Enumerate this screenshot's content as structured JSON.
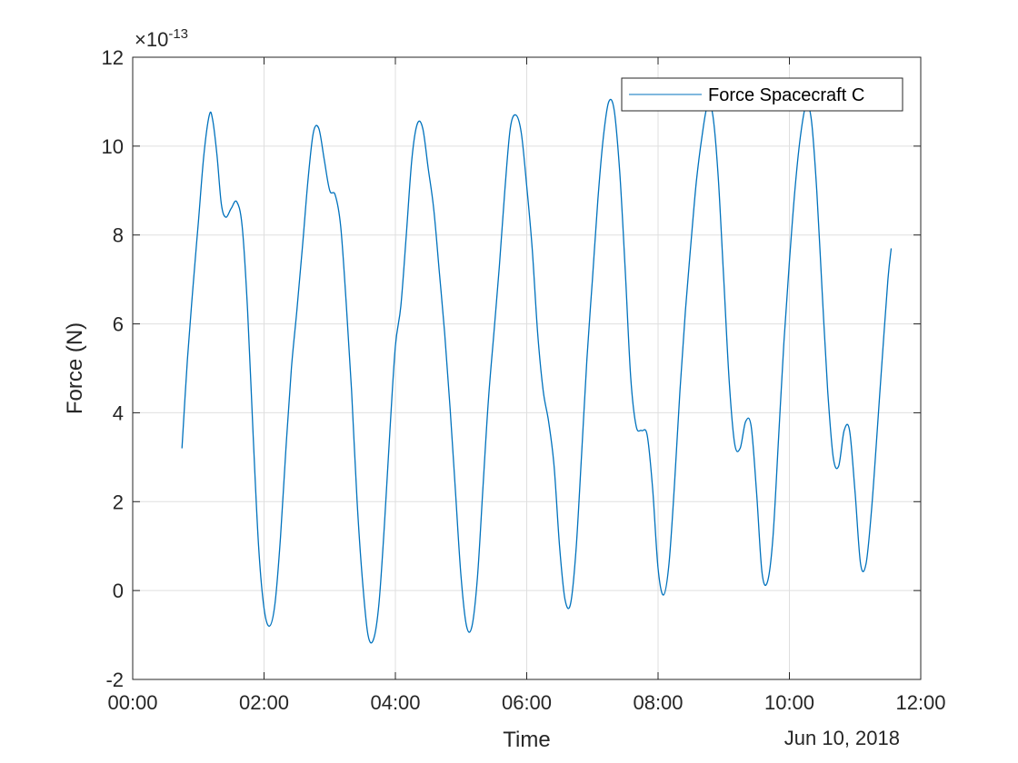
{
  "chart_data": {
    "type": "line",
    "xlabel": "Time",
    "ylabel": "Force (N)",
    "x_axis_type": "time",
    "x_tick_labels": [
      "00:00",
      "02:00",
      "04:00",
      "06:00",
      "08:00",
      "10:00",
      "12:00"
    ],
    "x_date_label": "Jun 10, 2018",
    "xlim": [
      "00:00",
      "12:00"
    ],
    "y_tick_labels": [
      "-2",
      "0",
      "2",
      "4",
      "6",
      "8",
      "10",
      "12"
    ],
    "ylim": [
      -2,
      12
    ],
    "y_exponent": {
      "base": "×10",
      "power": "-13"
    },
    "grid": true,
    "legend_position": "top-right",
    "series": [
      {
        "name": "Force Spacecraft C",
        "color": "#0072BD",
        "points": [
          [
            "00:45",
            3.2
          ],
          [
            "00:50",
            5.2
          ],
          [
            "00:55",
            6.8
          ],
          [
            "01:00",
            8.3
          ],
          [
            "01:05",
            9.8
          ],
          [
            "01:10",
            10.7
          ],
          [
            "01:13",
            10.6
          ],
          [
            "01:17",
            9.8
          ],
          [
            "01:21",
            8.7
          ],
          [
            "01:25",
            8.4
          ],
          [
            "01:30",
            8.6
          ],
          [
            "01:35",
            8.75
          ],
          [
            "01:40",
            8.2
          ],
          [
            "01:45",
            6.3
          ],
          [
            "01:50",
            3.5
          ],
          [
            "01:55",
            1.0
          ],
          [
            "02:00",
            -0.4
          ],
          [
            "02:05",
            -0.8
          ],
          [
            "02:10",
            -0.3
          ],
          [
            "02:15",
            1.2
          ],
          [
            "02:20",
            3.2
          ],
          [
            "02:25",
            5.0
          ],
          [
            "02:30",
            6.3
          ],
          [
            "02:35",
            7.7
          ],
          [
            "02:40",
            9.2
          ],
          [
            "02:45",
            10.3
          ],
          [
            "02:50",
            10.4
          ],
          [
            "02:55",
            9.7
          ],
          [
            "03:00",
            9.0
          ],
          [
            "03:05",
            8.9
          ],
          [
            "03:10",
            8.2
          ],
          [
            "03:15",
            6.5
          ],
          [
            "03:20",
            4.5
          ],
          [
            "03:25",
            2.0
          ],
          [
            "03:30",
            0.2
          ],
          [
            "03:35",
            -1.0
          ],
          [
            "03:40",
            -1.1
          ],
          [
            "03:45",
            -0.3
          ],
          [
            "03:50",
            1.5
          ],
          [
            "03:55",
            3.6
          ],
          [
            "04:00",
            5.5
          ],
          [
            "04:05",
            6.4
          ],
          [
            "04:10",
            8.0
          ],
          [
            "04:15",
            9.7
          ],
          [
            "04:20",
            10.5
          ],
          [
            "04:25",
            10.4
          ],
          [
            "04:30",
            9.5
          ],
          [
            "04:35",
            8.6
          ],
          [
            "04:40",
            7.2
          ],
          [
            "04:45",
            5.8
          ],
          [
            "04:50",
            4.1
          ],
          [
            "04:55",
            2.2
          ],
          [
            "05:00",
            0.3
          ],
          [
            "05:05",
            -0.8
          ],
          [
            "05:10",
            -0.8
          ],
          [
            "05:15",
            0.3
          ],
          [
            "05:20",
            2.3
          ],
          [
            "05:25",
            4.3
          ],
          [
            "05:30",
            5.8
          ],
          [
            "05:35",
            7.3
          ],
          [
            "05:40",
            9.0
          ],
          [
            "05:45",
            10.4
          ],
          [
            "05:50",
            10.7
          ],
          [
            "05:55",
            10.3
          ],
          [
            "06:00",
            9.1
          ],
          [
            "06:05",
            7.7
          ],
          [
            "06:10",
            5.8
          ],
          [
            "06:15",
            4.5
          ],
          [
            "06:20",
            3.8
          ],
          [
            "06:25",
            2.8
          ],
          [
            "06:30",
            1.0
          ],
          [
            "06:35",
            -0.2
          ],
          [
            "06:40",
            -0.3
          ],
          [
            "06:45",
            0.9
          ],
          [
            "06:50",
            3.0
          ],
          [
            "06:55",
            5.2
          ],
          [
            "07:00",
            7.0
          ],
          [
            "07:05",
            8.8
          ],
          [
            "07:10",
            10.2
          ],
          [
            "07:15",
            11.0
          ],
          [
            "07:20",
            10.8
          ],
          [
            "07:25",
            9.4
          ],
          [
            "07:30",
            7.2
          ],
          [
            "07:35",
            4.8
          ],
          [
            "07:40",
            3.7
          ],
          [
            "07:45",
            3.6
          ],
          [
            "07:50",
            3.5
          ],
          [
            "07:55",
            2.3
          ],
          [
            "08:00",
            0.5
          ],
          [
            "08:05",
            -0.1
          ],
          [
            "08:10",
            0.6
          ],
          [
            "08:15",
            2.4
          ],
          [
            "08:20",
            4.5
          ],
          [
            "08:25",
            6.3
          ],
          [
            "08:30",
            7.8
          ],
          [
            "08:35",
            9.2
          ],
          [
            "08:40",
            10.2
          ],
          [
            "08:45",
            10.9
          ],
          [
            "08:50",
            10.7
          ],
          [
            "08:55",
            9.3
          ],
          [
            "09:00",
            7.0
          ],
          [
            "09:05",
            4.7
          ],
          [
            "09:10",
            3.3
          ],
          [
            "09:15",
            3.2
          ],
          [
            "09:20",
            3.8
          ],
          [
            "09:25",
            3.7
          ],
          [
            "09:30",
            2.2
          ],
          [
            "09:35",
            0.4
          ],
          [
            "09:40",
            0.2
          ],
          [
            "09:45",
            1.2
          ],
          [
            "09:50",
            3.4
          ],
          [
            "09:55",
            5.6
          ],
          [
            "10:00",
            7.4
          ],
          [
            "10:05",
            9.0
          ],
          [
            "10:10",
            10.2
          ],
          [
            "10:15",
            10.9
          ],
          [
            "10:20",
            10.6
          ],
          [
            "10:25",
            9.0
          ],
          [
            "10:30",
            6.7
          ],
          [
            "10:35",
            4.5
          ],
          [
            "10:40",
            3.0
          ],
          [
            "10:45",
            2.8
          ],
          [
            "10:50",
            3.6
          ],
          [
            "10:55",
            3.6
          ],
          [
            "11:00",
            2.2
          ],
          [
            "11:05",
            0.6
          ],
          [
            "11:10",
            0.6
          ],
          [
            "11:15",
            1.8
          ],
          [
            "11:20",
            3.5
          ],
          [
            "11:25",
            5.3
          ],
          [
            "11:30",
            7.0
          ],
          [
            "11:33",
            7.7
          ]
        ]
      }
    ]
  }
}
